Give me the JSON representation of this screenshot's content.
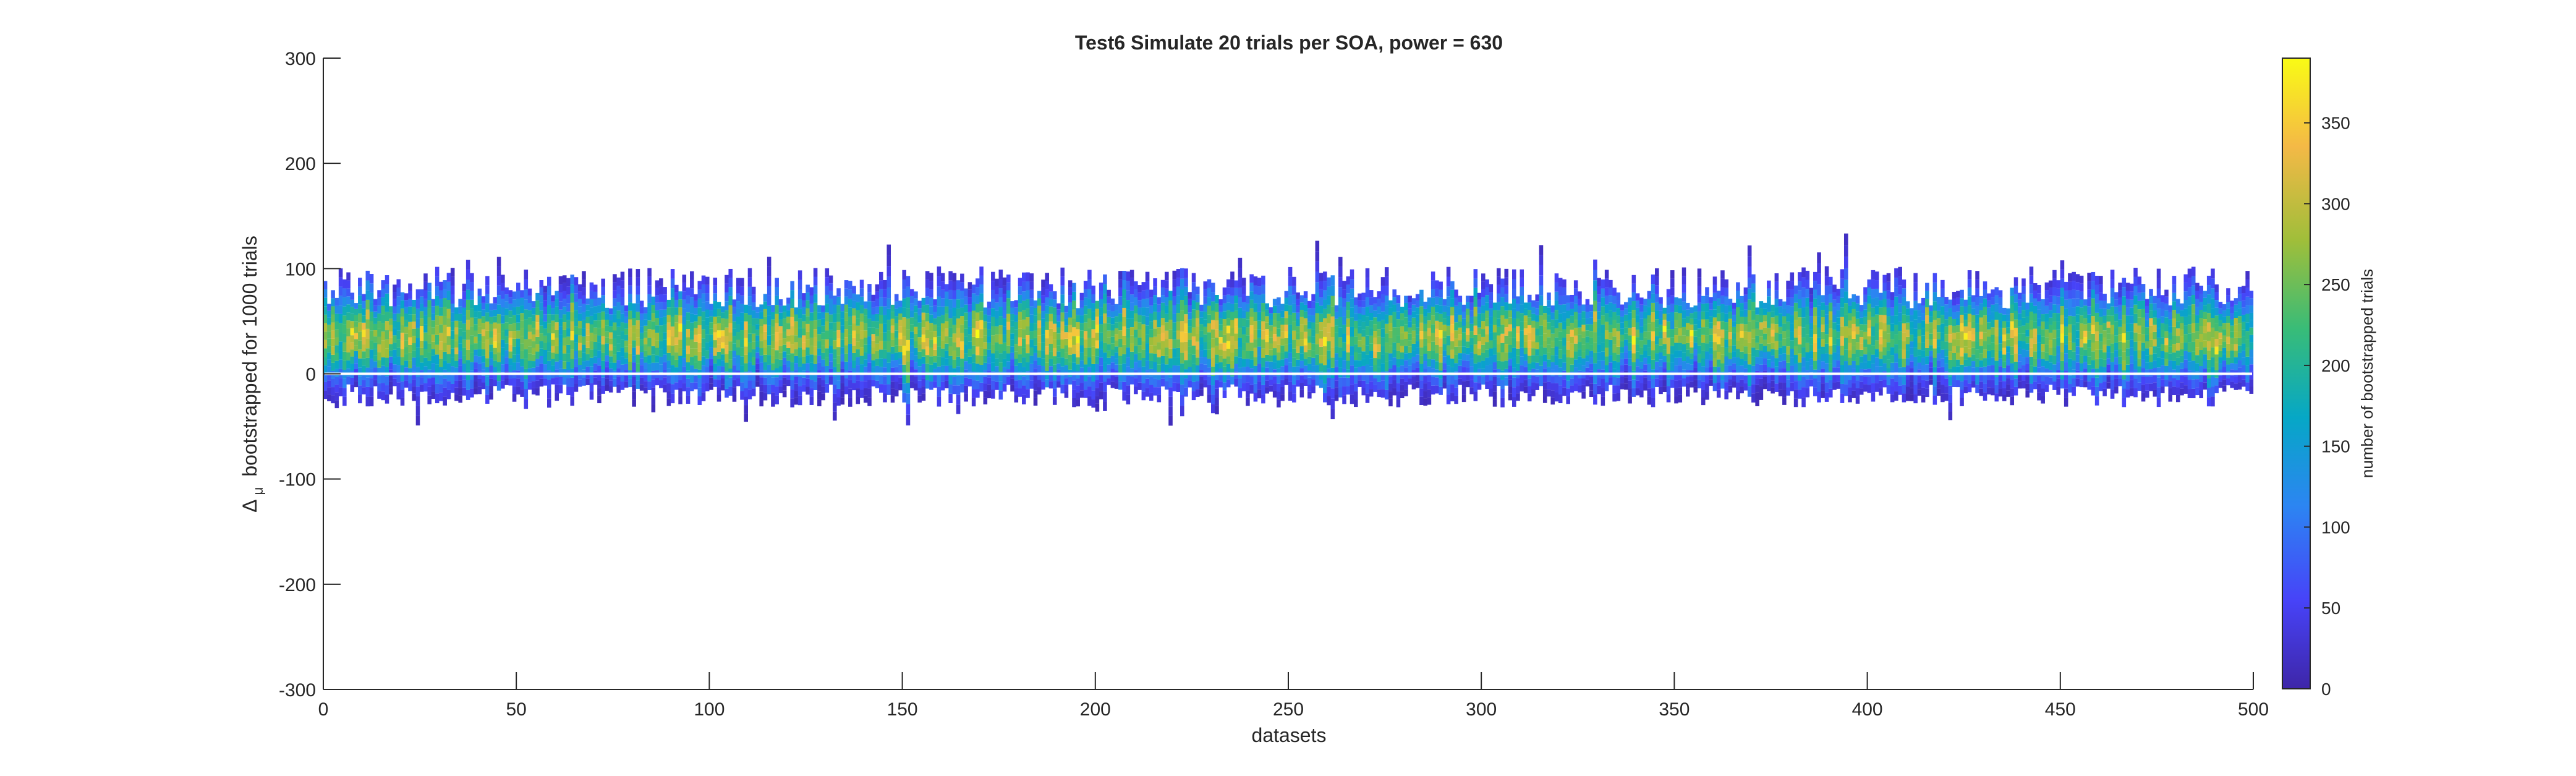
{
  "chart_data": {
    "type": "heatmap",
    "title": "Test6 Simulate 20 trials per SOA, power = 630",
    "xlabel": "datasets",
    "ylabel_main": "bootstrapped for 1000 trials",
    "ylabel_delta": "Δ",
    "ylabel_sub": "μ",
    "xlim": [
      0,
      500
    ],
    "ylim": [
      -300,
      300
    ],
    "xticks": [
      0,
      50,
      100,
      150,
      200,
      250,
      300,
      350,
      400,
      450,
      500
    ],
    "xtick_labels": [
      "0",
      "50",
      "100",
      "150",
      "200",
      "250",
      "300",
      "350",
      "400",
      "450",
      "500"
    ],
    "yticks": [
      300,
      200,
      100,
      0,
      -100,
      -200,
      -300
    ],
    "ytick_labels": [
      "300",
      "200",
      "100",
      "0",
      "-100",
      "-200",
      "-300"
    ],
    "colorbar": {
      "label": "number of bootstrapped trials",
      "clim": [
        0,
        390
      ],
      "ticks": [
        350,
        300,
        250,
        200,
        150,
        100,
        50,
        0
      ],
      "tick_labels": [
        "350",
        "300",
        "250",
        "200",
        "150",
        "100",
        "50",
        "0"
      ],
      "colormap": "parula",
      "colormap_stops": [
        "#3e26a8",
        "#4743f8",
        "#2c85f2",
        "#06a7c6",
        "#38bc78",
        "#9fbe3a",
        "#f4b946",
        "#f9fb15"
      ]
    },
    "grid": false,
    "description_of_data": "500 datasets; each column is a histogram of 1000 bootstrapped Δμ values, roughly spanning -30 to 100, centered near 30"
  }
}
